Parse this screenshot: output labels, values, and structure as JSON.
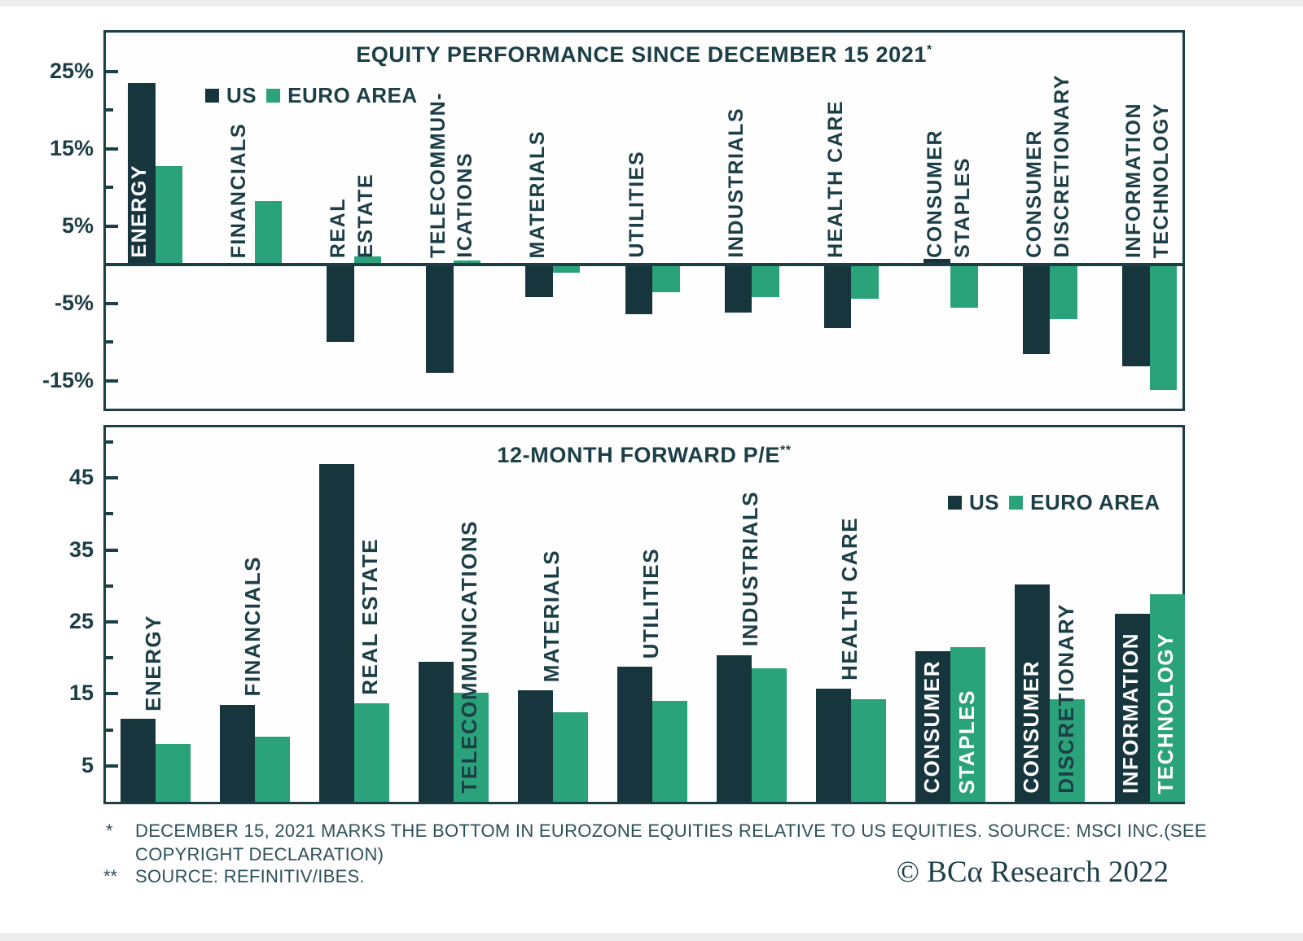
{
  "colors": {
    "us": "#17353d",
    "euro": "#2ba37a",
    "ink": "#1c3e46",
    "label_light": "#ffffff",
    "footnote": "#2d5159",
    "background": "#ffffff"
  },
  "chart_data": [
    {
      "type": "bar",
      "title": "EQUITY PERFORMANCE SINCE DECEMBER 15 2021",
      "title_mark": "*",
      "unit": "%",
      "legend": [
        "US",
        "EURO AREA"
      ],
      "legend_position": "top-left",
      "grid": false,
      "axis": {
        "range": [
          -19,
          30
        ],
        "ticks": [
          {
            "value": 25,
            "label": "25%"
          },
          {
            "value": 20,
            "label": ""
          },
          {
            "value": 15,
            "label": "15%"
          },
          {
            "value": 10,
            "label": ""
          },
          {
            "value": 5,
            "label": "5%"
          },
          {
            "value": 0,
            "label": ""
          },
          {
            "value": -5,
            "label": "-5%"
          },
          {
            "value": -10,
            "label": ""
          },
          {
            "value": -15,
            "label": "-15%"
          }
        ]
      },
      "categories": [
        "ENERGY",
        "FINANCIALS",
        "REAL ESTATE",
        "TELECOMMUNICATIONS",
        "MATERIALS",
        "UTILITIES",
        "INDUSTRIALS",
        "HEALTH CARE",
        "CONSUMER STAPLES",
        "CONSUMER DISCRETIONARY",
        "INFORMATION TECHNOLOGY"
      ],
      "series": [
        {
          "name": "US",
          "values": [
            23.5,
            0,
            -10,
            -14,
            -4.2,
            -6.4,
            -6.2,
            -8.2,
            0.7,
            -11.6,
            -13.2
          ]
        },
        {
          "name": "EURO AREA",
          "values": [
            12.7,
            8.2,
            1.1,
            0.5,
            -1.1,
            -3.6,
            -4.2,
            -4.4,
            -5.6,
            -7.1,
            -16.2
          ]
        }
      ],
      "labels": [
        {
          "lines": [
            "ENERGY"
          ],
          "colors": [
            "light"
          ],
          "anchor": "zero"
        },
        {
          "lines": [
            "FINANCIALS"
          ],
          "colors": [
            "dark"
          ],
          "anchor": "zero"
        },
        {
          "lines": [
            "REAL",
            "ESTATE"
          ],
          "colors": [
            "dark",
            "dark"
          ],
          "anchor": "zero"
        },
        {
          "lines": [
            "TELECOMMUN-",
            "ICATIONS"
          ],
          "colors": [
            "dark",
            "dark"
          ],
          "anchor": "zero"
        },
        {
          "lines": [
            "MATERIALS"
          ],
          "colors": [
            "dark"
          ],
          "anchor": "zero"
        },
        {
          "lines": [
            "UTILITIES"
          ],
          "colors": [
            "dark"
          ],
          "anchor": "zero"
        },
        {
          "lines": [
            "INDUSTRIALS"
          ],
          "colors": [
            "dark"
          ],
          "anchor": "zero"
        },
        {
          "lines": [
            "HEALTH CARE"
          ],
          "colors": [
            "dark"
          ],
          "anchor": "zero"
        },
        {
          "lines": [
            "CONSUMER",
            "STAPLES"
          ],
          "colors": [
            "dark",
            "dark"
          ],
          "anchor": "zero"
        },
        {
          "lines": [
            "CONSUMER",
            "DISCRETIONARY"
          ],
          "colors": [
            "dark",
            "dark"
          ],
          "anchor": "zero"
        },
        {
          "lines": [
            "INFORMATION",
            "TECHNOLOGY"
          ],
          "colors": [
            "dark",
            "dark"
          ],
          "anchor": "zero"
        }
      ]
    },
    {
      "type": "bar",
      "title": "12-MONTH FORWARD P/E",
      "title_mark": "**",
      "unit": "x",
      "legend": [
        "US",
        "EURO AREA"
      ],
      "legend_position": "top-right",
      "grid": false,
      "axis": {
        "range": [
          0,
          52
        ],
        "ticks": [
          {
            "value": 50,
            "label": ""
          },
          {
            "value": 45,
            "label": "45"
          },
          {
            "value": 40,
            "label": ""
          },
          {
            "value": 35,
            "label": "35"
          },
          {
            "value": 30,
            "label": ""
          },
          {
            "value": 25,
            "label": "25"
          },
          {
            "value": 20,
            "label": ""
          },
          {
            "value": 15,
            "label": "15"
          },
          {
            "value": 10,
            "label": ""
          },
          {
            "value": 5,
            "label": "5"
          }
        ]
      },
      "categories": [
        "ENERGY",
        "FINANCIALS",
        "REAL ESTATE",
        "TELECOMMUNICATIONS",
        "MATERIALS",
        "UTILITIES",
        "INDUSTRIALS",
        "HEALTH CARE",
        "CONSUMER STAPLES",
        "CONSUMER DISCRETIONARY",
        "INFORMATION TECHNOLOGY"
      ],
      "series": [
        {
          "name": "US",
          "values": [
            11.5,
            13.5,
            47,
            19.5,
            15.5,
            18.8,
            20.4,
            15.7,
            20.9,
            30.2,
            26.1
          ]
        },
        {
          "name": "EURO AREA",
          "values": [
            8,
            9,
            13.7,
            15.2,
            12.5,
            14,
            18.5,
            14.3,
            21.5,
            14.2,
            28.8
          ]
        }
      ],
      "labels": [
        {
          "lines": [
            "ENERGY"
          ],
          "colors": [
            "dark"
          ],
          "anchor": "above"
        },
        {
          "lines": [
            "FINANCIALS"
          ],
          "colors": [
            "dark"
          ],
          "anchor": "above"
        },
        {
          "lines": [
            "REAL ESTATE"
          ],
          "colors": [
            "dark"
          ],
          "anchor": "above-euro",
          "x": "euro"
        },
        {
          "lines": [
            "TELECOMMUNICATIONS"
          ],
          "colors": [
            "dark"
          ],
          "anchor": "baseline",
          "x": "euro"
        },
        {
          "lines": [
            "MATERIALS"
          ],
          "colors": [
            "dark"
          ],
          "anchor": "above"
        },
        {
          "lines": [
            "UTILITIES"
          ],
          "colors": [
            "dark"
          ],
          "anchor": "above"
        },
        {
          "lines": [
            "INDUSTRIALS"
          ],
          "colors": [
            "dark"
          ],
          "anchor": "above"
        },
        {
          "lines": [
            "HEALTH CARE"
          ],
          "colors": [
            "dark"
          ],
          "anchor": "above"
        },
        {
          "lines": [
            "CONSUMER",
            "STAPLES"
          ],
          "colors": [
            "light",
            "light"
          ],
          "anchor": "baseline"
        },
        {
          "lines": [
            "CONSUMER",
            "DISCRETIONARY"
          ],
          "colors": [
            "light",
            "dark"
          ],
          "anchor": "baseline"
        },
        {
          "lines": [
            "INFORMATION",
            "TECHNOLOGY"
          ],
          "colors": [
            "light",
            "light"
          ],
          "anchor": "baseline"
        }
      ]
    }
  ],
  "footnotes": [
    {
      "marker": "*",
      "lines": [
        "DECEMBER 15, 2021 MARKS THE BOTTOM IN EUROZONE EQUITIES RELATIVE TO US EQUITIES. SOURCE: MSCI INC.(SEE",
        "COPYRIGHT DECLARATION)"
      ]
    },
    {
      "marker": "**",
      "lines": [
        "SOURCE: REFINITIV/IBES."
      ]
    }
  ],
  "logo": {
    "text": "© BCα Research 2022"
  }
}
